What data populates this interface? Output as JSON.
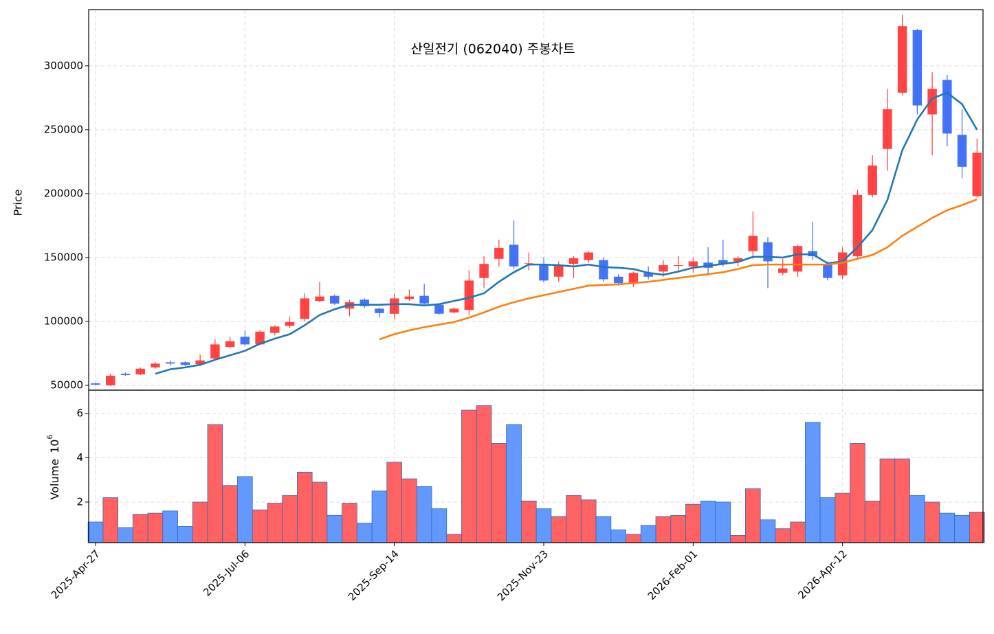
{
  "chart_data": {
    "type": "candlestick",
    "title": "산일전기 (062040) 주봉차트",
    "ylabel": "Price",
    "categories": [
      "2025-Apr-27",
      null,
      null,
      null,
      null,
      null,
      null,
      null,
      null,
      null,
      "2025-Jul-06",
      null,
      null,
      null,
      null,
      null,
      null,
      null,
      null,
      null,
      "2025-Sep-14",
      null,
      null,
      null,
      null,
      null,
      null,
      null,
      null,
      null,
      "2025-Nov-23",
      null,
      null,
      null,
      null,
      null,
      null,
      null,
      null,
      null,
      "2026-Feb-01",
      null,
      null,
      null,
      null,
      null,
      null,
      null,
      null,
      null,
      "2026-Apr-12",
      null,
      null,
      null,
      null,
      null,
      null,
      null,
      null,
      null
    ],
    "open": [
      51500,
      50000,
      59000,
      58500,
      64000,
      68000,
      68000,
      66500,
      71000,
      80000,
      88000,
      82000,
      91000,
      96500,
      102000,
      116000,
      120000,
      110000,
      117000,
      110000,
      106000,
      117500,
      120000,
      113000,
      107000,
      109000,
      134000,
      149000,
      160000,
      145000,
      145000,
      135000,
      145000,
      148000,
      148000,
      135000,
      130000,
      138000,
      139000,
      143500,
      143000,
      146000,
      148000,
      147000,
      155000,
      162000,
      138000,
      139000,
      155000,
      145000,
      136000,
      151000,
      199000,
      235000,
      279000,
      328000,
      262000,
      289000,
      246000,
      198000
    ],
    "high": [
      52000,
      59000,
      60000,
      64000,
      68000,
      69500,
      69000,
      74000,
      86000,
      88000,
      93000,
      93000,
      97000,
      104000,
      122000,
      131000,
      121000,
      117000,
      118000,
      110500,
      122000,
      125000,
      129500,
      114000,
      111000,
      140000,
      151000,
      164000,
      179000,
      154000,
      150000,
      147000,
      151000,
      155000,
      150000,
      137000,
      139000,
      143000,
      148000,
      151000,
      150000,
      158000,
      164000,
      151000,
      186000,
      166000,
      149000,
      160000,
      178000,
      147000,
      158000,
      203000,
      230000,
      282000,
      340000,
      329000,
      295000,
      293000,
      266000,
      243000
    ],
    "low": [
      49800,
      49500,
      57500,
      58000,
      63000,
      65500,
      65000,
      65000,
      70000,
      79000,
      81000,
      81500,
      89000,
      95000,
      100000,
      115000,
      113000,
      104000,
      110500,
      103000,
      102000,
      116000,
      113000,
      105500,
      106000,
      105000,
      126000,
      143000,
      141000,
      140000,
      130500,
      131000,
      134000,
      146000,
      131000,
      128000,
      127000,
      133000,
      135000,
      138000,
      138000,
      136000,
      143000,
      143000,
      149000,
      126000,
      136000,
      135000,
      148000,
      132000,
      133000,
      150000,
      197000,
      218000,
      277000,
      262000,
      230000,
      237000,
      212000,
      197000
    ],
    "close": [
      50500,
      57500,
      58000,
      63000,
      67000,
      67000,
      66000,
      69500,
      82000,
      84500,
      82000,
      92000,
      96000,
      99500,
      118000,
      119500,
      114000,
      115000,
      112000,
      106500,
      118000,
      119500,
      114000,
      106000,
      110000,
      132000,
      145000,
      157500,
      143000,
      145500,
      132000,
      144000,
      149500,
      154000,
      133000,
      130000,
      138000,
      135000,
      144000,
      144000,
      147000,
      142000,
      145000,
      149500,
      167000,
      147000,
      141500,
      159000,
      151000,
      134000,
      154000,
      199000,
      222000,
      266000,
      331000,
      269000,
      282000,
      247000,
      221000,
      232000
    ],
    "up_color": "#ff3a3a",
    "down_color": "#3a6cf5",
    "ylim": [
      46200,
      344000
    ],
    "yticks": [
      50000,
      100000,
      150000,
      200000,
      250000,
      300000
    ],
    "grid": true,
    "series": [
      {
        "color": "#1f77b4",
        "values": [
          null,
          null,
          null,
          null,
          59000,
          62500,
          64000,
          66000,
          70000,
          73500,
          77000,
          82500,
          86500,
          90000,
          97000,
          105000,
          109500,
          113000,
          113000,
          113000,
          113500,
          113500,
          112500,
          113500,
          116000,
          118500,
          122000,
          131000,
          138500,
          144500,
          144500,
          144000,
          143000,
          144500,
          142500,
          142000,
          141000,
          138000,
          136500,
          139000,
          142000,
          143500,
          145000,
          146500,
          150500,
          150500,
          150000,
          152500,
          152500,
          145500,
          147000,
          158000,
          171500,
          195000,
          234000,
          258000,
          274500,
          279000,
          270000,
          250000
        ]
      },
      {
        "color": "#ff7f0e",
        "values": [
          null,
          null,
          null,
          null,
          null,
          null,
          null,
          null,
          null,
          null,
          null,
          null,
          null,
          null,
          null,
          null,
          null,
          null,
          null,
          86000,
          90000,
          93000,
          95500,
          97500,
          99500,
          103000,
          107000,
          111500,
          115000,
          118000,
          120500,
          123000,
          125500,
          128000,
          128500,
          129000,
          130000,
          131000,
          132500,
          134000,
          135500,
          137000,
          138500,
          141000,
          144000,
          144500,
          144500,
          144500,
          144500,
          144500,
          146000,
          149000,
          152000,
          158000,
          167000,
          174000,
          181000,
          187000,
          191000,
          195500
        ]
      }
    ],
    "volume": [
      1.1,
      2.2,
      0.85,
      1.45,
      1.5,
      1.6,
      0.9,
      2.0,
      5.5,
      2.75,
      3.15,
      1.65,
      1.95,
      2.3,
      3.35,
      2.9,
      1.4,
      1.95,
      1.05,
      2.5,
      3.8,
      3.05,
      2.7,
      1.7,
      0.55,
      6.15,
      6.35,
      4.65,
      5.5,
      2.05,
      1.7,
      1.35,
      2.3,
      2.1,
      1.35,
      0.75,
      0.55,
      0.95,
      1.35,
      1.4,
      1.9,
      2.05,
      2.0,
      0.5,
      2.6,
      1.2,
      0.8,
      1.1,
      5.6,
      2.2,
      2.4,
      4.65,
      2.05,
      3.95,
      3.95,
      2.3,
      2.0,
      1.5,
      1.4,
      1.55
    ],
    "volume_ylabel": "Volume",
    "volume_scale_base": "10",
    "volume_scale_exponent": "6",
    "volume_up_color": "#ff6262",
    "volume_down_color": "#6399ff",
    "volume_ylim": [
      0.17,
      7.05
    ],
    "volume_yticks": [
      2,
      4,
      6
    ]
  }
}
